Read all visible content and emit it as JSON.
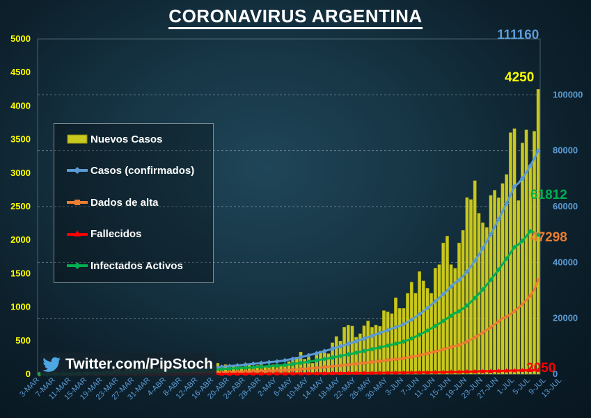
{
  "title": "CORONAVIRUS ARGENTINA",
  "twitter": "Twitter.com/PipStoch",
  "colors": {
    "bars": "#c8c81e",
    "confirmed": "#5b9bd5",
    "discharged": "#ed7d31",
    "deaths": "#ff0000",
    "active": "#00b050",
    "left_axis": "#ffff00",
    "right_axis": "#5b9bd5"
  },
  "end_labels": {
    "confirmed": "111160",
    "new_cases": "4250",
    "active": "61812",
    "discharged": "47298",
    "deaths": "2050"
  },
  "legend": [
    {
      "key": "bars",
      "label": "Nuevos Casos",
      "icon": "bar-swatch-icon"
    },
    {
      "key": "confirmed",
      "label": "Casos (confirmados)",
      "icon": "diamond-line-icon"
    },
    {
      "key": "discharged",
      "label": "Dados de alta",
      "icon": "square-line-icon"
    },
    {
      "key": "deaths",
      "label": "Fallecidos",
      "icon": "triangle-line-icon"
    },
    {
      "key": "active",
      "label": "Infectados Activos",
      "icon": "diamond-line-icon"
    }
  ],
  "chart_data": {
    "type": "bar",
    "title": "CORONAVIRUS ARGENTINA",
    "x_tick_labels": [
      "3-MAR",
      "7-MAR",
      "11-MAR",
      "15-MAR",
      "19-MAR",
      "23-MAR",
      "27-MAR",
      "31-MAR",
      "4-ABR",
      "8-ABR",
      "12-ABR",
      "16-ABR",
      "20-ABR",
      "24-ABR",
      "28-ABR",
      "2-MAY",
      "6-MAY",
      "10-MAY",
      "14-MAY",
      "18-MAY",
      "22-MAY",
      "26-MAY",
      "30-MAY",
      "3-JUN",
      "7-JUN",
      "11-JUN",
      "15-JUN",
      "19-JUN",
      "23-JUN",
      "27-JUN",
      "1-JUL",
      "5-JUL",
      "9-JUL",
      "13-JUL"
    ],
    "x_start": "3-MAR",
    "x_end": "16-JUL",
    "left_axis": {
      "range": [
        0,
        5000
      ],
      "ticks": [
        0,
        500,
        1000,
        1500,
        2000,
        2500,
        3000,
        3500,
        4000,
        4500,
        5000
      ]
    },
    "right_axis": {
      "range": [
        0,
        120000
      ],
      "ticks": [
        0,
        20000,
        40000,
        60000,
        80000,
        100000
      ]
    },
    "grid": true,
    "legend_position": "left",
    "bar_series": {
      "name": "Nuevos Casos",
      "axis": "left",
      "values": [
        1,
        0,
        0,
        0,
        0,
        0,
        2,
        5,
        3,
        5,
        4,
        8,
        19,
        13,
        14,
        31,
        18,
        47,
        35,
        67,
        87,
        41,
        102,
        101,
        55,
        89,
        90,
        69,
        132,
        74,
        96,
        167,
        145,
        129,
        107,
        85,
        77,
        88,
        98,
        153,
        100,
        102,
        110,
        148,
        124,
        165,
        111,
        144,
        104,
        135,
        113,
        111,
        128,
        143,
        90,
        130,
        158,
        104,
        105,
        144,
        150,
        129,
        154,
        189,
        212,
        256,
        331,
        225,
        255,
        165,
        316,
        345,
        322,
        306,
        469,
        564,
        495,
        702,
        732,
        718,
        552,
        604,
        723,
        795,
        701,
        734,
        715,
        949,
        930,
        904,
        1141,
        983,
        983,
        1208,
        1374,
        1209,
        1531,
        1393,
        1282,
        1208,
        1582,
        1634,
        1958,
        2060,
        1634,
        1581,
        1957,
        2146,
        2635,
        2606,
        2886,
        2401,
        2260,
        2189,
        2667,
        2744,
        2632,
        2845,
        2979,
        3604,
        3663,
        2590,
        3449,
        3645,
        3099,
        3624,
        4250
      ]
    },
    "line_series": [
      {
        "name": "Casos (confirmados)",
        "axis": "right",
        "points": [
          [
            "3-MAR",
            1
          ],
          [
            "1-ABR",
            1054
          ],
          [
            "1-MAY",
            4428
          ],
          [
            "1-JUN",
            16851
          ],
          [
            "16-JUN",
            32785
          ],
          [
            "1-JUL",
            67197
          ],
          [
            "16-JUL",
            111160
          ]
        ]
      },
      {
        "name": "Dados de alta",
        "axis": "right",
        "points": [
          [
            "3-MAR",
            0
          ],
          [
            "1-ABR",
            248
          ],
          [
            "1-MAY",
            1245
          ],
          [
            "1-JUN",
            5385
          ],
          [
            "16-JUN",
            10120
          ],
          [
            "28-JUN",
            20000
          ],
          [
            "5-JUL",
            28000
          ],
          [
            "8-JUL",
            38000
          ],
          [
            "16-JUL",
            47298
          ]
        ]
      },
      {
        "name": "Fallecidos",
        "axis": "right",
        "points": [
          [
            "3-MAR",
            0
          ],
          [
            "1-ABR",
            27
          ],
          [
            "1-MAY",
            218
          ],
          [
            "1-JUN",
            528
          ],
          [
            "1-JUL",
            1307
          ],
          [
            "16-JUL",
            2050
          ]
        ]
      },
      {
        "name": "Infectados Activos",
        "axis": "right",
        "points": [
          [
            "3-MAR",
            1
          ],
          [
            "1-ABR",
            779
          ],
          [
            "1-MAY",
            2965
          ],
          [
            "1-JUN",
            10938
          ],
          [
            "16-JUN",
            21900
          ],
          [
            "1-JUL",
            45500
          ],
          [
            "5-JUL",
            51200
          ],
          [
            "8-JUL",
            49000
          ],
          [
            "16-JUL",
            61812
          ]
        ]
      }
    ]
  }
}
